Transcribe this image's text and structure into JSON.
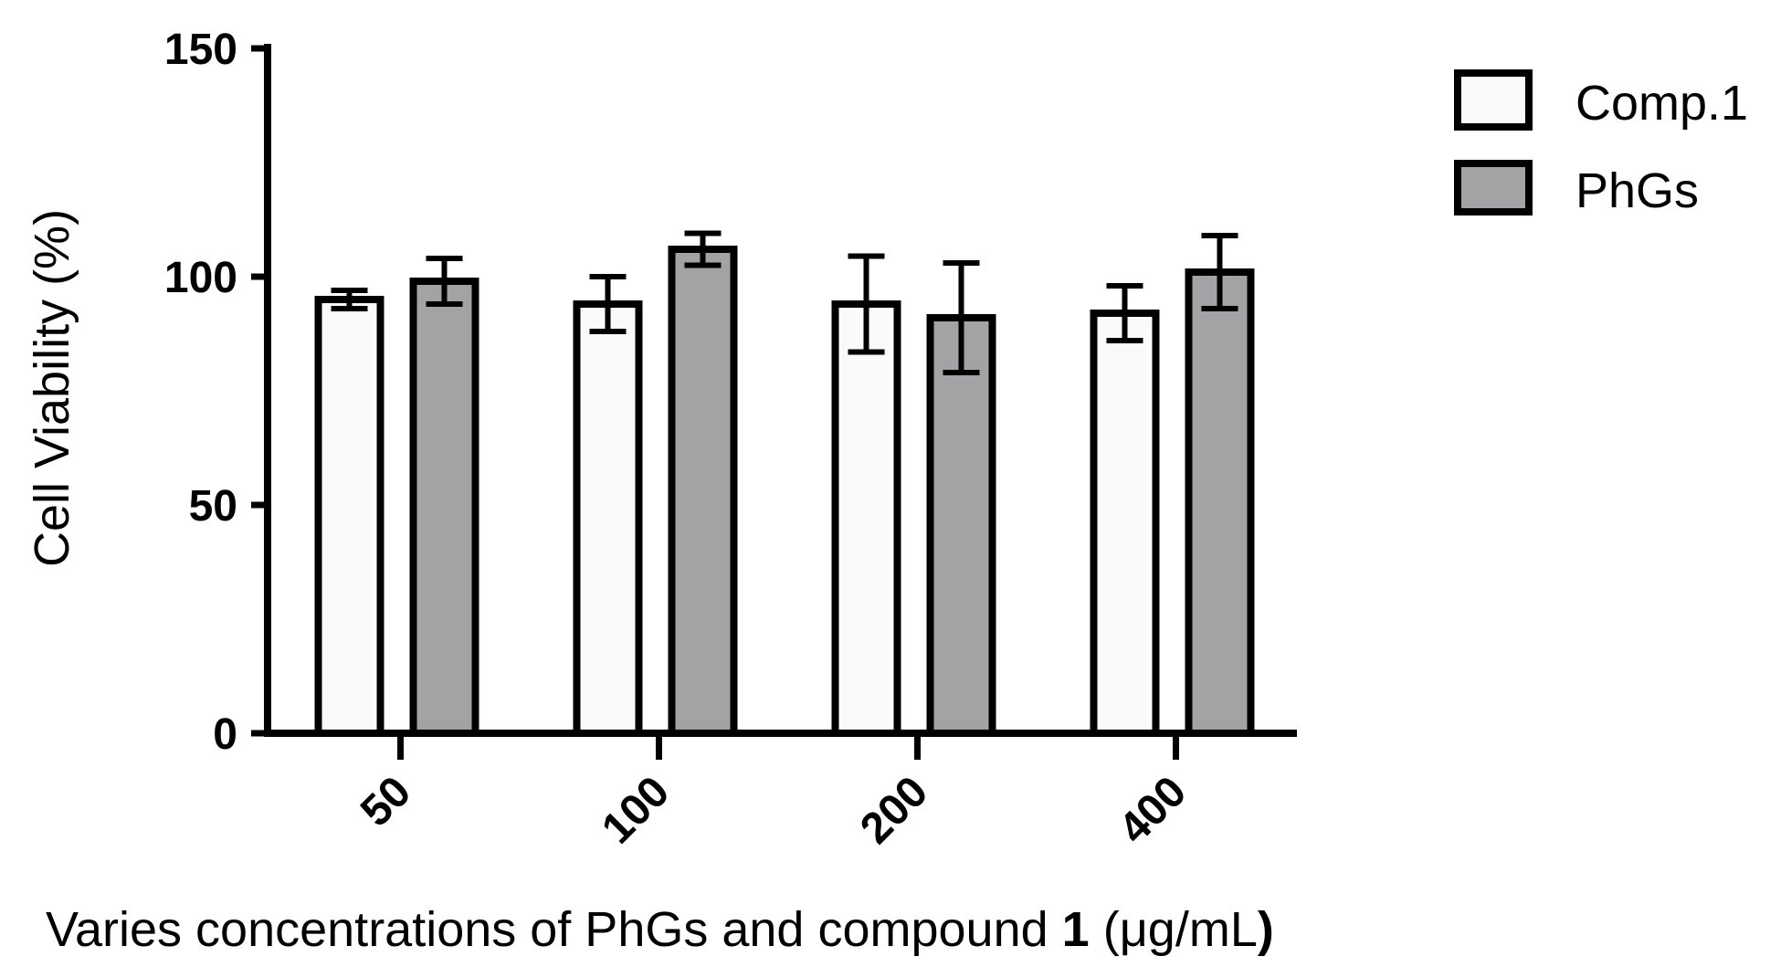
{
  "chart_data": {
    "type": "bar",
    "title": "",
    "xlabel": {
      "prefix": "Varies concentrations of PhGs and compound ",
      "bold": "1",
      "middle": " (μg/mL",
      "suffix": ")"
    },
    "ylabel": "Cell Viability (%)",
    "ylim": [
      0,
      150
    ],
    "yticks": [
      "0",
      "50",
      "100",
      "150"
    ],
    "categories": [
      "50",
      "100",
      "200",
      "400"
    ],
    "series": [
      {
        "name": "Comp.1",
        "color": "#fafafa",
        "values": [
          95,
          94,
          94,
          92
        ],
        "errors": [
          2,
          6,
          10.5,
          6
        ]
      },
      {
        "name": "PhGs",
        "color": "#a3a3a6",
        "values": [
          99,
          106,
          91,
          101
        ],
        "errors": [
          5,
          3.5,
          12,
          8
        ]
      }
    ],
    "legend_position": "top-right",
    "grid": false
  }
}
